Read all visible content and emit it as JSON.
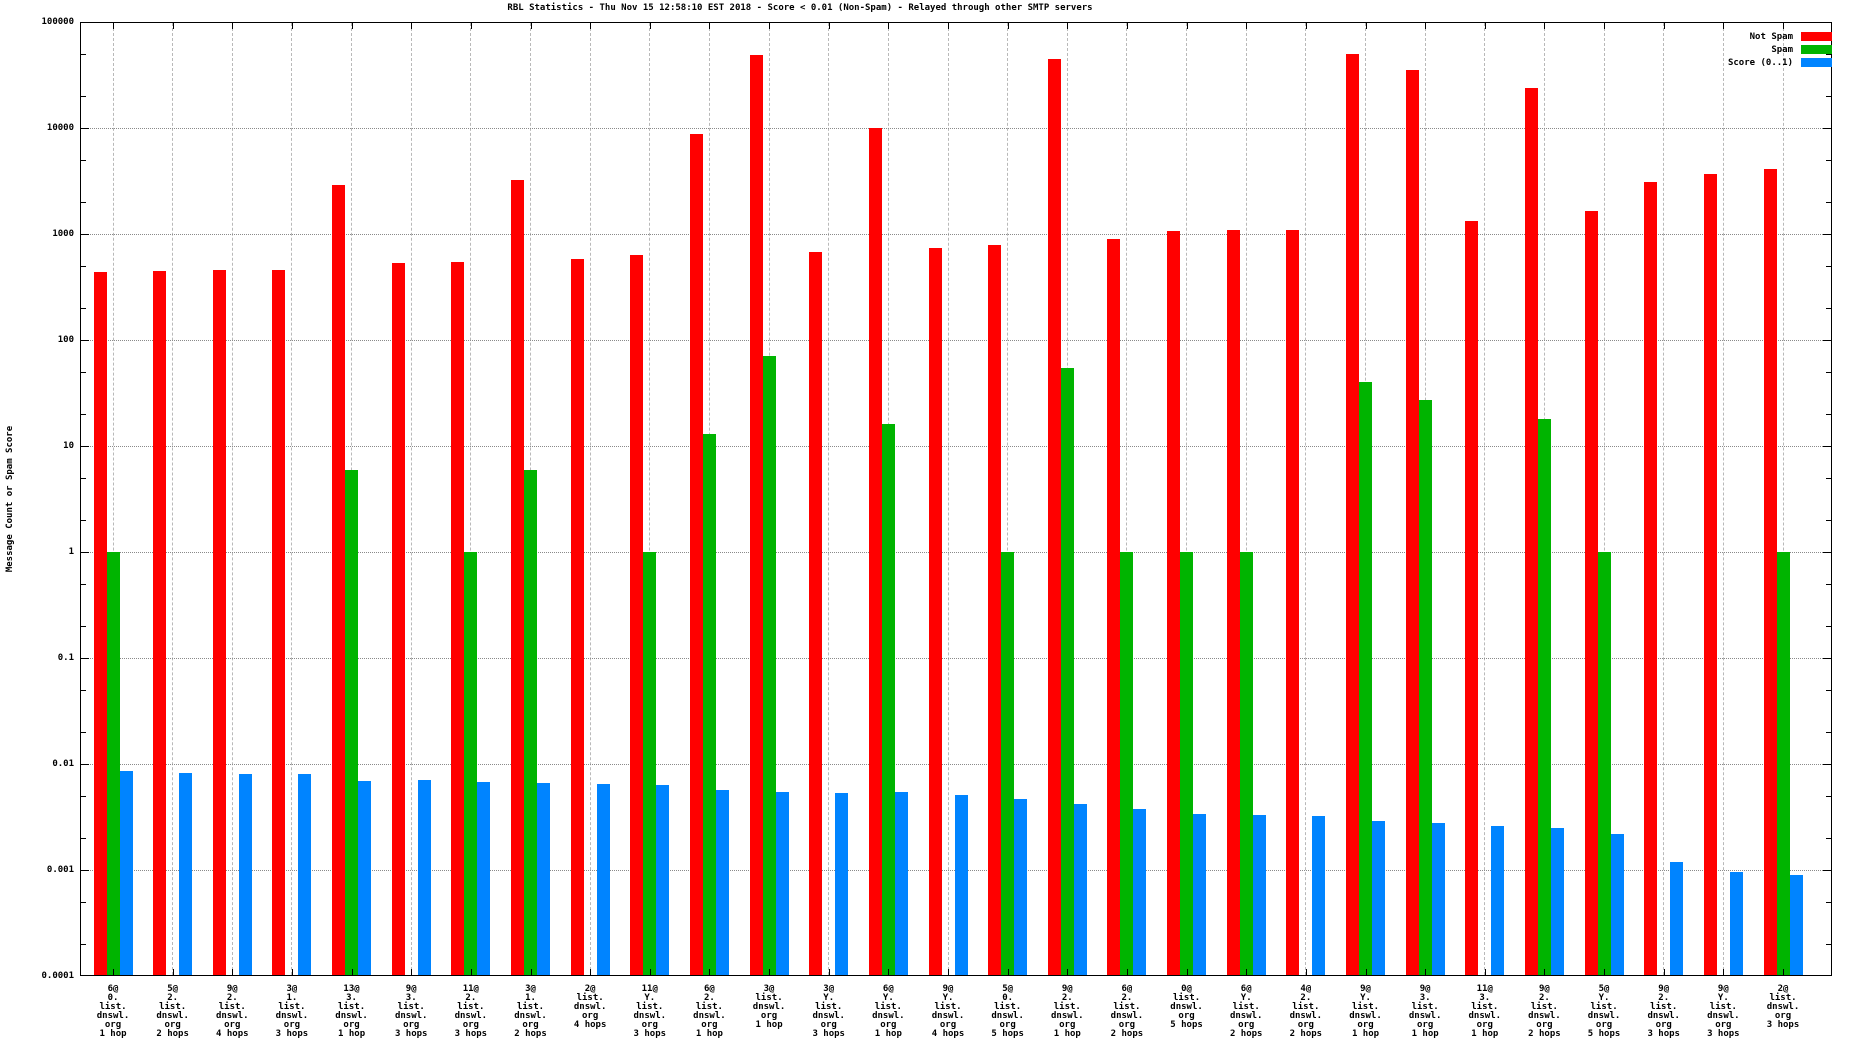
{
  "title": "RBL Statistics - Thu Nov 15 12:58:10 EST 2018 - Score < 0.01 (Non-Spam) - Relayed through other SMTP servers",
  "ylabel": "Message Count or Spam Score",
  "legend": [
    {
      "label": "Not Spam",
      "color": "#ff0000"
    },
    {
      "label": "Spam",
      "color": "#00b400"
    },
    {
      "label": "Score (0..1)",
      "color": "#0084ff"
    }
  ],
  "y_ticks": [
    "100000",
    "10000",
    "1000",
    "100",
    "10",
    "1",
    "0.1",
    "0.01",
    "0.001",
    "0.0001"
  ],
  "chart_data": {
    "type": "bar",
    "scale": "log",
    "ylim": [
      0.0001,
      100000
    ],
    "grid": true,
    "legend_position": "top-right",
    "title": "RBL Statistics - Thu Nov 15 12:58:10 EST 2018 - Score < 0.01 (Non-Spam) - Relayed through other SMTP servers",
    "xlabel": "",
    "ylabel": "Message Count or Spam Score",
    "categories": [
      [
        "6@",
        "0.",
        "list.",
        "dnswl.",
        "org",
        "1 hop"
      ],
      [
        "5@",
        "2.",
        "list.",
        "dnswl.",
        "org",
        "2 hops"
      ],
      [
        "9@",
        "2.",
        "list.",
        "dnswl.",
        "org",
        "4 hops"
      ],
      [
        "3@",
        "1.",
        "list.",
        "dnswl.",
        "org",
        "3 hops"
      ],
      [
        "13@",
        "3.",
        "list.",
        "dnswl.",
        "org",
        "1 hop"
      ],
      [
        "9@",
        "3.",
        "list.",
        "dnswl.",
        "org",
        "3 hops"
      ],
      [
        "11@",
        "2.",
        "list.",
        "dnswl.",
        "org",
        "3 hops"
      ],
      [
        "3@",
        "1.",
        "list.",
        "dnswl.",
        "org",
        "2 hops"
      ],
      [
        "2@",
        "list.",
        "dnswl.",
        "org",
        "4 hops"
      ],
      [
        "11@",
        "Y.",
        "list.",
        "dnswl.",
        "org",
        "3 hops"
      ],
      [
        "6@",
        "2.",
        "list.",
        "dnswl.",
        "org",
        "1 hop"
      ],
      [
        "3@",
        "list.",
        "dnswl.",
        "org",
        "1 hop"
      ],
      [
        "3@",
        "Y.",
        "list.",
        "dnswl.",
        "org",
        "3 hops"
      ],
      [
        "6@",
        "Y.",
        "list.",
        "dnswl.",
        "org",
        "1 hop"
      ],
      [
        "9@",
        "Y.",
        "list.",
        "dnswl.",
        "org",
        "4 hops"
      ],
      [
        "5@",
        "0.",
        "list.",
        "dnswl.",
        "org",
        "5 hops"
      ],
      [
        "9@",
        "2.",
        "list.",
        "dnswl.",
        "org",
        "1 hop"
      ],
      [
        "6@",
        "2.",
        "list.",
        "dnswl.",
        "org",
        "2 hops"
      ],
      [
        "0@",
        "list.",
        "dnswl.",
        "org",
        "5 hops"
      ],
      [
        "6@",
        "Y.",
        "list.",
        "dnswl.",
        "org",
        "2 hops"
      ],
      [
        "4@",
        "2.",
        "list.",
        "dnswl.",
        "org",
        "2 hops"
      ],
      [
        "9@",
        "Y.",
        "list.",
        "dnswl.",
        "org",
        "1 hop"
      ],
      [
        "9@",
        "3.",
        "list.",
        "dnswl.",
        "org",
        "1 hop"
      ],
      [
        "11@",
        "3.",
        "list.",
        "dnswl.",
        "org",
        "1 hop"
      ],
      [
        "9@",
        "2.",
        "list.",
        "dnswl.",
        "org",
        "2 hops"
      ],
      [
        "5@",
        "Y.",
        "list.",
        "dnswl.",
        "org",
        "5 hops"
      ],
      [
        "9@",
        "2.",
        "list.",
        "dnswl.",
        "org",
        "3 hops"
      ],
      [
        "9@",
        "Y.",
        "list.",
        "dnswl.",
        "org",
        "3 hops"
      ],
      [
        "2@",
        "list.",
        "dnswl.",
        "org",
        "3 hops"
      ]
    ],
    "series": [
      {
        "name": "Not Spam",
        "color": "#ff0000",
        "values": [
          440,
          450,
          460,
          455,
          2900,
          535,
          545,
          3200,
          580,
          640,
          8800,
          49000,
          680,
          10000,
          730,
          790,
          45000,
          900,
          1060,
          1090,
          1100,
          50000,
          35000,
          1340,
          24000,
          1650,
          3100,
          3700,
          4100
        ]
      },
      {
        "name": "Spam",
        "color": "#00b400",
        "values": [
          1,
          null,
          null,
          null,
          6,
          null,
          1,
          6,
          null,
          1,
          13,
          70,
          null,
          16,
          null,
          1,
          55,
          1,
          1,
          1,
          null,
          40,
          27,
          null,
          18,
          1,
          null,
          null,
          1
        ]
      },
      {
        "name": "Score (0..1)",
        "color": "#0084ff",
        "values": [
          0.0085,
          0.0083,
          0.008,
          0.0081,
          0.0069,
          0.007,
          0.0068,
          0.0066,
          0.0065,
          0.0063,
          0.0057,
          0.0055,
          0.0053,
          0.0054,
          0.0051,
          0.0047,
          0.0042,
          0.0038,
          0.0034,
          0.0033,
          0.0032,
          0.0029,
          0.0028,
          0.0026,
          0.0025,
          0.0022,
          0.0012,
          0.00095,
          0.0009
        ]
      }
    ]
  }
}
